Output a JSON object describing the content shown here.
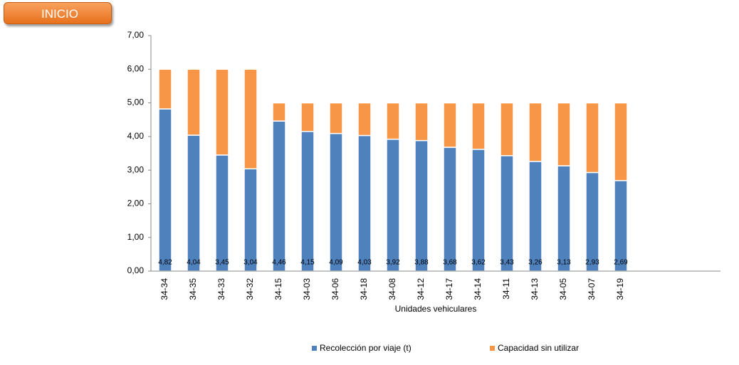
{
  "button": "INICIO",
  "chart_data": {
    "type": "stacked_bar",
    "x_label": "Unidades vehiculares",
    "categories": [
      "34-34",
      "34-35",
      "34-33",
      "34-32",
      "34-15",
      "34-03",
      "34-06",
      "34-18",
      "34-08",
      "34-12",
      "34-17",
      "34-14",
      "34-11",
      "34-13",
      "34-05",
      "34-07",
      "34-19",
      null,
      null,
      null
    ],
    "series": [
      {
        "name": "Recolección por viaje (t)",
        "color": "#4f81bd",
        "values": [
          4.82,
          4.04,
          3.45,
          3.04,
          4.46,
          4.15,
          4.09,
          4.03,
          3.92,
          3.88,
          3.68,
          3.62,
          3.43,
          3.26,
          3.13,
          2.93,
          2.69,
          null,
          null,
          null
        ],
        "value_labels": [
          "4,82",
          "4,04",
          "3,45",
          "3,04",
          "4,46",
          "4,15",
          "4,09",
          "4,03",
          "3,92",
          "3,88",
          "3,68",
          "3,62",
          "3,43",
          "3,26",
          "3,13",
          "2,93",
          "2,69",
          null,
          null,
          null
        ]
      },
      {
        "name": "Capacidad sin utilizar",
        "color": "#f79646",
        "values": [
          1.18,
          1.96,
          2.55,
          2.96,
          0.54,
          0.85,
          0.91,
          0.97,
          1.08,
          1.12,
          1.32,
          1.38,
          1.57,
          1.74,
          1.87,
          2.07,
          2.31,
          null,
          null,
          null
        ]
      }
    ],
    "ylim": [
      0,
      7
    ],
    "yticks": [
      {
        "value": 0,
        "label": "0,00"
      },
      {
        "value": 1,
        "label": "1,00"
      },
      {
        "value": 2,
        "label": "2,00"
      },
      {
        "value": 3,
        "label": "3,00"
      },
      {
        "value": 4,
        "label": "4,00"
      },
      {
        "value": 5,
        "label": "5,00"
      },
      {
        "value": 6,
        "label": "6,00"
      },
      {
        "value": 7,
        "label": "7,00"
      }
    ],
    "legend": "bottom"
  }
}
